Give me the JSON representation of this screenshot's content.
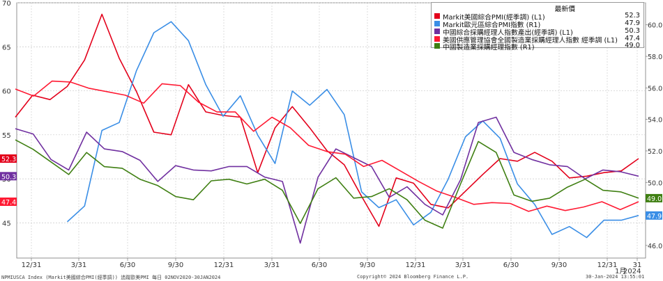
{
  "chart_data": {
    "type": "line",
    "axes": {
      "left": {
        "label": "",
        "range": [
          41,
          70
        ],
        "ticks": [
          45,
          50,
          55,
          60,
          65,
          70
        ]
      },
      "right": {
        "label": "",
        "range": [
          45.2,
          61.4
        ],
        "ticks": [
          46.0,
          48.0,
          50.0,
          52.0,
          54.0,
          56.0,
          58.0,
          60.0
        ]
      }
    },
    "x_labels": [
      "12/31",
      "3/31",
      "6/30",
      "9/30",
      "12/31",
      "3/31",
      "6/30",
      "9/30",
      "12/31",
      "3/31",
      "6/30",
      "9/30",
      "12/31",
      "31"
    ],
    "x_sublabels": {
      "year": "2024",
      "month": "1月"
    },
    "legend": {
      "title": "最新價",
      "entries": [
        {
          "name": "Markit美國綜合PMI(經季調) (L1)",
          "value": "52.3",
          "color": "#e3001b"
        },
        {
          "name": "Markit歐元區綜合PMI指數 (R1)",
          "value": "47.9",
          "color": "#3a8ee6"
        },
        {
          "name": "中國綜合採購經理人指數產出(經季調) (L1)",
          "value": "50.3",
          "color": "#7030a0"
        },
        {
          "name": "美國供應管理協會全國製造業採購經理人指數 經季調 (L1)",
          "value": "47.4",
          "color": "#ff1a33"
        },
        {
          "name": "中國製造業採購經理指數 (R1)",
          "value": "49.0",
          "color": "#3f7f12"
        }
      ]
    },
    "series": [
      {
        "name": "Markit美國綜合PMI(經季調) (L1)",
        "axis": "left",
        "color": "#e3001b",
        "values": [
          57.0,
          59.5,
          59.0,
          60.5,
          63.5,
          68.7,
          63.7,
          59.9,
          55.3,
          55.0,
          60.7,
          57.6,
          57.2,
          57.0,
          50.7,
          55.8,
          58.2,
          55.8,
          53.2,
          51.6,
          48.0,
          44.6,
          50.1,
          49.5,
          47.1,
          46.7,
          48.6,
          50.5,
          52.3,
          52.0,
          53.0,
          52.0,
          50.1,
          50.3,
          50.7,
          50.9,
          52.3
        ]
      },
      {
        "name": "Markit歐元區綜合PMI指數 (R1)",
        "axis": "right",
        "color": "#3a8ee6",
        "values": [
          null,
          null,
          null,
          47.5,
          48.5,
          53.3,
          53.8,
          57.1,
          59.5,
          60.2,
          59.0,
          56.2,
          54.2,
          55.5,
          53.0,
          51.2,
          55.8,
          54.9,
          55.9,
          54.3,
          49.4,
          48.4,
          48.9,
          47.3,
          48.1,
          50.2,
          52.9,
          53.9,
          52.8,
          49.9,
          48.6,
          46.7,
          47.2,
          46.5,
          47.6,
          47.6,
          47.9
        ]
      },
      {
        "name": "中國綜合採購經理人指數產出(經季調) (L1)",
        "axis": "left",
        "color": "#7030a0",
        "values": [
          55.7,
          55.1,
          52.2,
          51.0,
          55.3,
          53.4,
          53.1,
          52.1,
          49.7,
          51.5,
          51.0,
          50.9,
          51.4,
          51.4,
          50.2,
          49.7,
          42.7,
          50.2,
          53.4,
          52.4,
          51.4,
          47.9,
          49.1,
          47.1,
          45.9,
          49.9,
          56.4,
          57.0,
          53.0,
          52.2,
          51.6,
          51.4,
          50.0,
          51.0,
          50.8,
          50.3
        ]
      },
      {
        "name": "美國供應管理協會全國製造業採購經理人指數 經季調 (L1)",
        "axis": "left",
        "color": "#ff1a33",
        "values": [
          60.2,
          59.4,
          61.1,
          61.0,
          60.3,
          59.9,
          59.5,
          58.6,
          60.8,
          60.6,
          58.7,
          57.6,
          57.6,
          55.4,
          57.0,
          55.8,
          53.8,
          53.1,
          52.8,
          51.4,
          52.1,
          50.9,
          49.7,
          48.6,
          47.9,
          47.1,
          47.3,
          47.2,
          46.3,
          46.9,
          46.4,
          46.8,
          47.4,
          46.5,
          47.4
        ]
      },
      {
        "name": "中國製造業採購經理指數 (R1)",
        "axis": "right",
        "color": "#3f7f12",
        "values": [
          52.7,
          52.1,
          51.3,
          50.5,
          51.9,
          51.0,
          50.9,
          50.2,
          49.8,
          49.1,
          48.9,
          50.1,
          50.2,
          49.9,
          50.2,
          49.5,
          47.4,
          49.6,
          50.3,
          49.0,
          49.1,
          49.6,
          48.9,
          47.6,
          47.1,
          49.9,
          52.6,
          51.9,
          49.2,
          48.8,
          49.0,
          49.7,
          50.2,
          49.5,
          49.4,
          49.0
        ]
      }
    ],
    "value_tags": [
      {
        "text": "52.3",
        "side": "left",
        "axis_value": 52.3,
        "color": "#e3001b"
      },
      {
        "text": "50.3",
        "side": "left",
        "axis_value": 50.3,
        "color": "#7030a0"
      },
      {
        "text": "47.4",
        "side": "left",
        "axis_value": 47.4,
        "color": "#ff1a33"
      },
      {
        "text": "49.0",
        "side": "right",
        "axis_value": 49.0,
        "color": "#3f7f12"
      },
      {
        "text": "47.9",
        "side": "right",
        "axis_value": 47.9,
        "color": "#3a8ee6"
      }
    ],
    "grid": true
  },
  "footer": {
    "left": "NPMIUSCA Index (Markit美國綜合PMI(經季調)) 追蹤歐美PMI  每日 02NOV2020-30JAN2024",
    "center": "Copyright© 2024 Bloomberg Finance L.P.",
    "right": "30-Jan-2024 13:55:01"
  }
}
